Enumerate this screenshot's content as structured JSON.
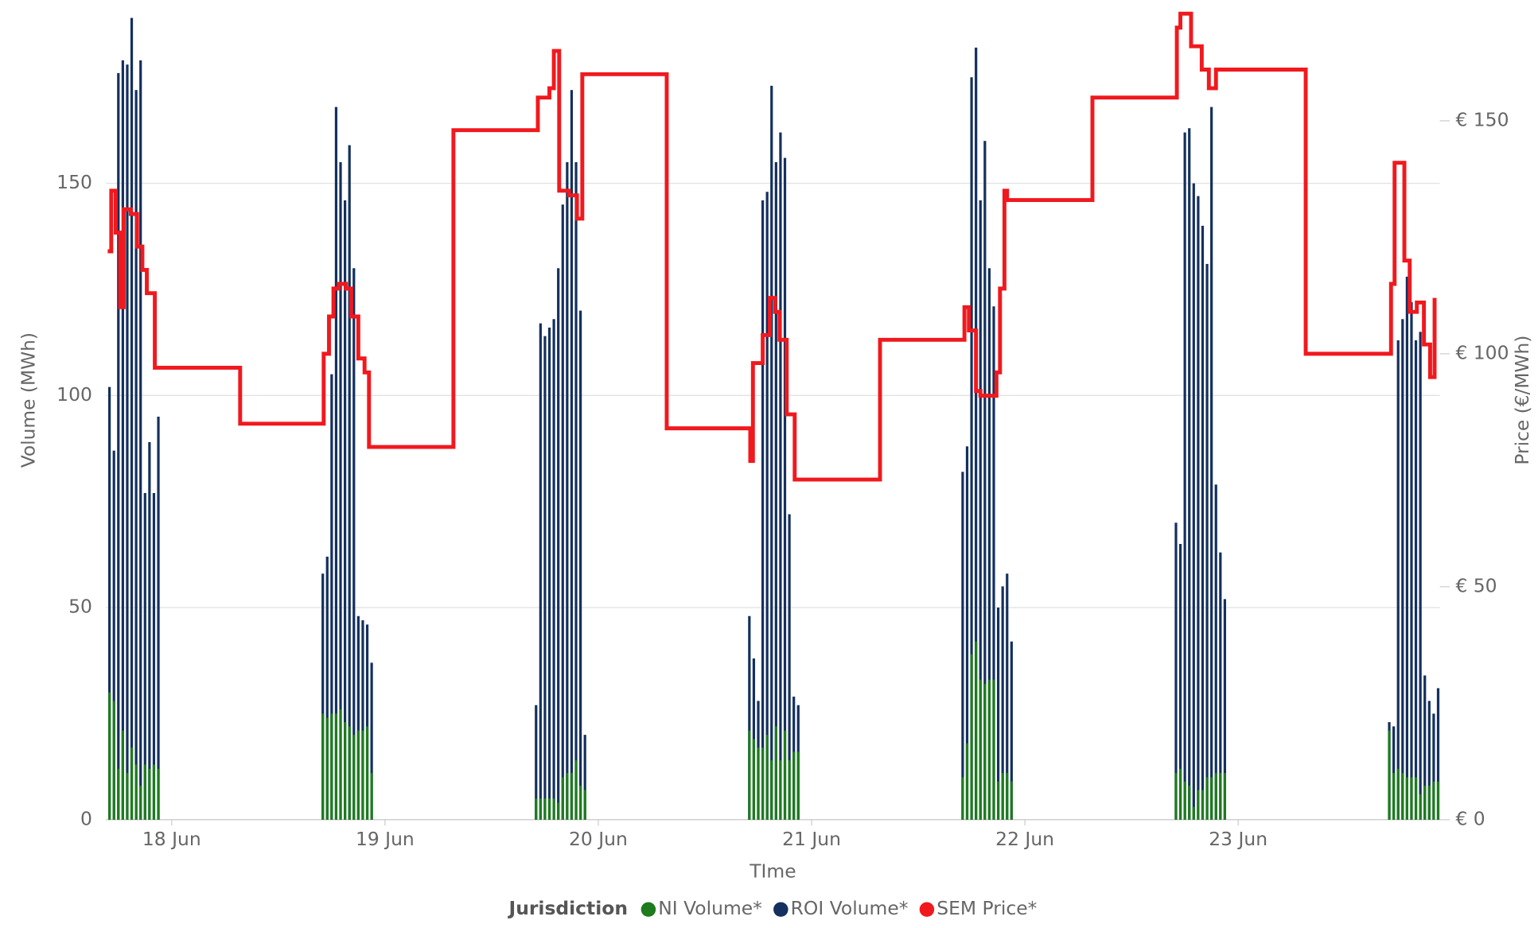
{
  "chart_data": {
    "type": "bar",
    "x_label": "TIme",
    "y_label": "Volume (MWh)",
    "y2_label": "Price (€/MWh)",
    "legend_title": "Jurisdiction",
    "legend": "bottom",
    "grid": true,
    "xlim": [
      -7.4,
      142.7
    ],
    "xticks": [
      {
        "value": 0,
        "label": "18 Jun"
      },
      {
        "value": 24,
        "label": "19 Jun"
      },
      {
        "value": 48,
        "label": "20 Jun"
      },
      {
        "value": 72,
        "label": "21 Jun"
      },
      {
        "value": 96,
        "label": "22 Jun"
      },
      {
        "value": 120,
        "label": "23 Jun"
      }
    ],
    "ylim": [
      0,
      190
    ],
    "yticks": [
      0,
      50,
      100,
      150
    ],
    "y2lim": [
      0,
      173
    ],
    "y2ticks": [
      {
        "value": 0,
        "label": "€ 0"
      },
      {
        "value": 50,
        "label": "€ 50"
      },
      {
        "value": 100,
        "label": "€ 100"
      },
      {
        "value": 150,
        "label": "€ 150"
      }
    ],
    "x": [
      -7,
      -6.5,
      -6,
      -5.5,
      -5,
      -4.5,
      -4,
      -3.5,
      -3,
      -2.5,
      -2,
      -1.5,
      17,
      17.5,
      18,
      18.5,
      19,
      19.5,
      20,
      20.5,
      21,
      21.5,
      22,
      22.5,
      41,
      41.5,
      42,
      42.5,
      43,
      43.5,
      44,
      44.5,
      45,
      45.5,
      46,
      46.5,
      65,
      65.5,
      66,
      66.5,
      67,
      67.5,
      68,
      68.5,
      69,
      69.5,
      70,
      70.5,
      89,
      89.5,
      90,
      90.5,
      91,
      91.5,
      92,
      92.5,
      93,
      93.5,
      94,
      94.5,
      113,
      113.5,
      114,
      114.5,
      115,
      115.5,
      116,
      116.5,
      117,
      117.5,
      118,
      118.5,
      137,
      137.5,
      138,
      138.5,
      139,
      139.5,
      140,
      140.5,
      141,
      141.5,
      142,
      142.5
    ],
    "series": [
      {
        "name": "ROI Volume*",
        "color": "#14305e",
        "values": [
          102,
          87,
          176,
          179,
          178,
          189,
          172,
          179,
          77,
          89,
          77,
          95,
          58,
          62,
          105,
          168,
          155,
          146,
          159,
          130,
          48,
          47,
          46,
          37,
          27,
          117,
          114,
          116,
          118,
          130,
          145,
          155,
          172,
          155,
          120,
          20,
          48,
          38,
          28,
          146,
          148,
          173,
          155,
          162,
          156,
          72,
          29,
          27,
          82,
          88,
          175,
          182,
          146,
          160,
          130,
          121,
          50,
          55,
          58,
          42,
          70,
          65,
          162,
          163,
          150,
          147,
          140,
          131,
          168,
          79,
          63,
          52,
          23,
          22,
          113,
          118,
          128,
          122,
          113,
          115,
          34,
          28,
          25,
          31
        ]
      },
      {
        "name": "NI Volume*",
        "color": "#1e7b1e",
        "values": [
          30,
          28,
          12,
          21,
          11,
          17,
          13,
          8,
          13,
          12,
          13,
          12,
          25,
          24,
          25,
          25,
          26,
          23,
          22,
          20,
          21,
          21,
          22,
          11,
          5,
          5,
          5,
          5,
          5,
          4,
          10,
          11,
          11,
          14,
          8,
          7,
          21,
          19,
          17,
          17,
          20,
          14,
          22,
          14,
          21,
          14,
          16,
          16,
          10,
          18,
          39,
          42,
          33,
          32,
          33,
          33,
          9,
          11,
          11,
          9,
          11,
          12,
          9,
          8,
          3,
          7,
          7,
          10,
          10,
          11,
          11,
          11,
          21,
          11,
          12,
          11,
          10,
          10,
          10,
          6,
          8,
          8,
          9,
          9
        ]
      },
      {
        "name": "SEM Price*",
        "color": "#f0191e",
        "type": "line",
        "step": true,
        "axis": "y2",
        "x": [
          -7.2,
          -6.8,
          -6.3,
          -5.8,
          -5.4,
          -4.6,
          -3.9,
          -3.3,
          -2.8,
          -1.9,
          7.7,
          17.1,
          17.7,
          18.2,
          18.8,
          19.6,
          20.2,
          21,
          21.7,
          22.2,
          31.7,
          41.2,
          42.5,
          43,
          43.6,
          44.7,
          45.6,
          46.2,
          55.7,
          65.1,
          65.4,
          66.5,
          67.3,
          67.9,
          68.4,
          69.2,
          70.1,
          79.7,
          89.2,
          89.7,
          90.5,
          91,
          92.8,
          93.2,
          93.7,
          94,
          103.6,
          113.1,
          113.5,
          114.7,
          115.9,
          116.7,
          117.5,
          127.6,
          137.2,
          137.6,
          138.7,
          139.3,
          140.1,
          140.9,
          141.6,
          142.1
        ],
        "values": [
          122,
          135,
          126,
          110,
          131,
          130,
          123,
          118,
          113,
          97,
          85,
          100,
          108,
          114,
          115,
          114,
          108,
          99,
          96,
          80,
          148,
          155,
          157,
          165,
          135,
          134,
          129,
          160,
          84,
          77,
          98,
          104,
          112,
          109,
          103,
          87,
          73,
          103,
          110,
          105,
          92,
          91,
          96,
          114,
          135,
          133,
          155,
          170,
          173,
          166,
          161,
          157,
          161,
          100,
          115,
          141,
          120,
          109,
          111,
          102,
          95,
          112
        ]
      }
    ]
  }
}
